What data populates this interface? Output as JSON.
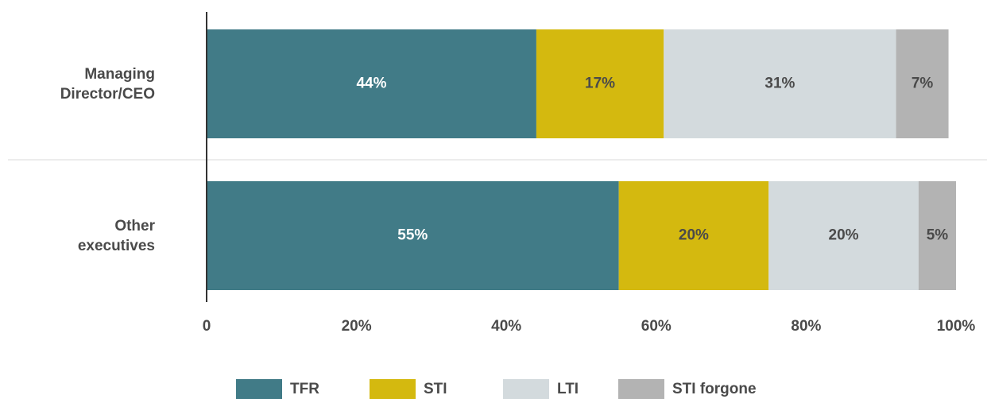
{
  "chart_data": {
    "type": "stacked-bar-horizontal",
    "categories": [
      "Managing Director/CEO",
      "Other executives"
    ],
    "series": [
      {
        "name": "TFR",
        "color": "#417b87",
        "values": [
          44,
          55
        ],
        "value_labels": [
          "44%",
          "55%"
        ]
      },
      {
        "name": "STI",
        "color": "#d4b90f",
        "values": [
          17,
          20
        ],
        "value_labels": [
          "17%",
          "20%"
        ]
      },
      {
        "name": "LTI",
        "color": "#d3dadd",
        "values": [
          31,
          20
        ],
        "value_labels": [
          "31%",
          "20%"
        ]
      },
      {
        "name": "STI forgone",
        "color": "#b3b3b3",
        "values": [
          7,
          5
        ],
        "value_labels": [
          "7%",
          "5%"
        ]
      }
    ],
    "xlim": [
      0,
      100
    ],
    "xticks": [
      0,
      {
        "value": 20,
        "label": "20%"
      },
      {
        "value": 40,
        "label": "40%"
      },
      {
        "value": 60,
        "label": "60%"
      },
      {
        "value": 80,
        "label": "80%"
      },
      {
        "value": 100,
        "label": "100%"
      }
    ],
    "legend": "bottom"
  }
}
